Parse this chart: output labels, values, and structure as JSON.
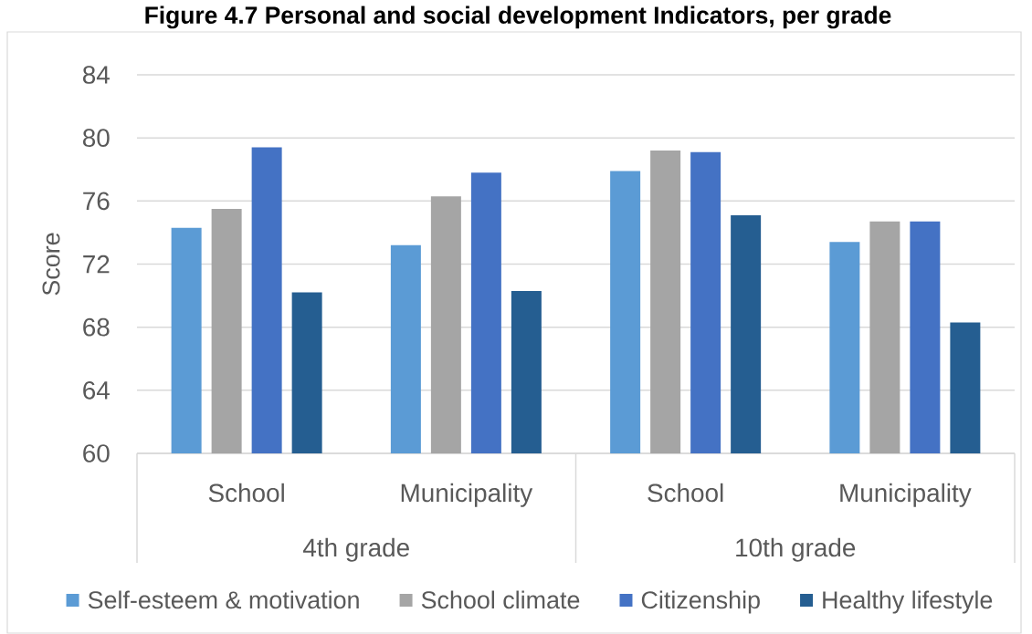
{
  "chart_data": {
    "type": "bar",
    "title": "Figure 4.7 Personal and social development Indicators, per grade",
    "ylabel": "Score",
    "categories": [
      "School",
      "Municipality",
      "School",
      "Municipality"
    ],
    "annotations": [
      "4th grade",
      "10th grade"
    ],
    "series": [
      {
        "name": "Self-esteem & motivation",
        "color": "#5b9bd5",
        "values": [
          74.3,
          73.2,
          77.9,
          73.4
        ]
      },
      {
        "name": "School climate",
        "color": "#a5a5a5",
        "values": [
          75.5,
          76.3,
          79.2,
          74.7
        ]
      },
      {
        "name": "Citizenship",
        "color": "#4472c4",
        "values": [
          79.4,
          77.8,
          79.1,
          74.7
        ]
      },
      {
        "name": "Healthy lifestyle",
        "color": "#255e91",
        "values": [
          70.2,
          70.3,
          75.1,
          68.3
        ]
      }
    ],
    "ylim": [
      60,
      84
    ],
    "yticks": [
      60,
      64,
      68,
      72,
      76,
      80,
      84
    ],
    "grid": "y",
    "legend": "bottom"
  }
}
